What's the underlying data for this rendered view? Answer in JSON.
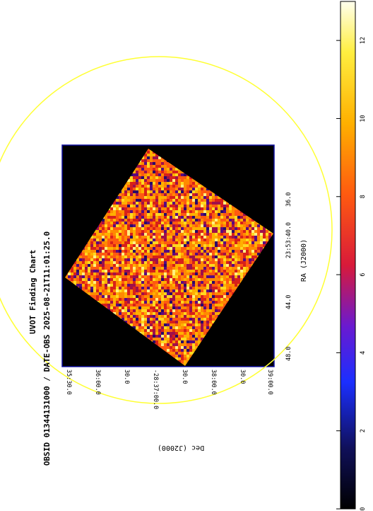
{
  "title_line1": "UVOT Finding Chart",
  "title_line2": "OBSID 01344131000 / DATE-OBS 2025-08-21T11:01:25.0",
  "axis": {
    "ra_label": "RA (J2000)",
    "dec_label": "Dec (J2000)",
    "ra_ticks": [
      "48.0",
      "44.0",
      "23:53:40.0",
      "36.0"
    ],
    "dec_ticks": [
      "35:30.0",
      "36:00.0",
      "30.0",
      "-28:37:00.0",
      "30.0",
      "38:00.0",
      "30.0",
      "39:00.0"
    ]
  },
  "colorbar": {
    "ticks": [
      "0",
      "2",
      "4",
      "6",
      "8",
      "10",
      "12"
    ],
    "min": 0,
    "max": 13,
    "colormap": "hot-to-blue (black, navy, blue, purple, red, orange, yellow, white)"
  },
  "chart_data": {
    "type": "heatmap",
    "title": "UVOT Finding Chart",
    "subtitle": "OBSID 01344131000 / DATE-OBS 2025-08-21T11:01:25.0",
    "xlabel": "RA (J2000)",
    "ylabel": "Dec (J2000)",
    "x_tick_labels": [
      "48.0",
      "44.0",
      "23:53:40.0",
      "36.0"
    ],
    "y_tick_labels": [
      "35:30.0",
      "36:00.0",
      "30.0",
      "-28:37:00.0",
      "30.0",
      "38:00.0",
      "30.0",
      "39:00.0"
    ],
    "colorbar_ticks": [
      0,
      2,
      4,
      6,
      8,
      10,
      12
    ],
    "value_range": [
      0,
      13
    ],
    "overlays": [
      "yellow circle",
      "rotated square exposure footprint"
    ]
  },
  "colors": {
    "background": "#000000",
    "circle": "#ffff33",
    "frame": "#1010a0"
  }
}
